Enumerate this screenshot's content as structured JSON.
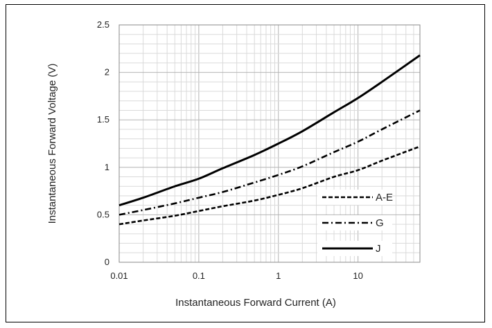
{
  "chart_data": {
    "type": "line",
    "title": "",
    "xlabel": "Instantaneous Forward Current (A)",
    "ylabel": "Instantaneous Forward Voltage (V)",
    "xscale": "log",
    "xlim": [
      0.01,
      60
    ],
    "ylim": [
      0,
      2.5
    ],
    "x_ticks": [
      "0.01",
      "0.1",
      "1",
      "10"
    ],
    "x_tick_values": [
      0.01,
      0.1,
      1,
      10
    ],
    "y_ticks": [
      "0",
      "0.5",
      "1",
      "1.5",
      "2",
      "2.5"
    ],
    "y_tick_values": [
      0,
      0.5,
      1,
      1.5,
      2,
      2.5
    ],
    "grid": "on (log minor gridlines on x, major and minor on y)",
    "legend_position": "lower-right inside plot",
    "series": [
      {
        "name": "A-E",
        "style": "dashed",
        "points": [
          [
            0.01,
            0.4
          ],
          [
            0.02,
            0.44
          ],
          [
            0.05,
            0.49
          ],
          [
            0.1,
            0.54
          ],
          [
            0.2,
            0.59
          ],
          [
            0.5,
            0.65
          ],
          [
            1,
            0.71
          ],
          [
            2,
            0.78
          ],
          [
            5,
            0.9
          ],
          [
            10,
            0.97
          ],
          [
            20,
            1.07
          ],
          [
            60,
            1.22
          ]
        ]
      },
      {
        "name": "G",
        "style": "dash-dot",
        "points": [
          [
            0.01,
            0.5
          ],
          [
            0.02,
            0.55
          ],
          [
            0.05,
            0.62
          ],
          [
            0.1,
            0.68
          ],
          [
            0.2,
            0.74
          ],
          [
            0.5,
            0.84
          ],
          [
            1,
            0.92
          ],
          [
            2,
            1.01
          ],
          [
            5,
            1.16
          ],
          [
            10,
            1.27
          ],
          [
            20,
            1.4
          ],
          [
            60,
            1.6
          ]
        ]
      },
      {
        "name": "J",
        "style": "solid",
        "points": [
          [
            0.01,
            0.6
          ],
          [
            0.02,
            0.68
          ],
          [
            0.05,
            0.8
          ],
          [
            0.1,
            0.88
          ],
          [
            0.2,
            0.99
          ],
          [
            0.5,
            1.13
          ],
          [
            1,
            1.25
          ],
          [
            2,
            1.38
          ],
          [
            5,
            1.58
          ],
          [
            10,
            1.73
          ],
          [
            20,
            1.9
          ],
          [
            60,
            2.18
          ]
        ]
      }
    ],
    "colors": {
      "lines": "#000000",
      "grid": "#c8c8c8",
      "frame": "#000000"
    }
  }
}
